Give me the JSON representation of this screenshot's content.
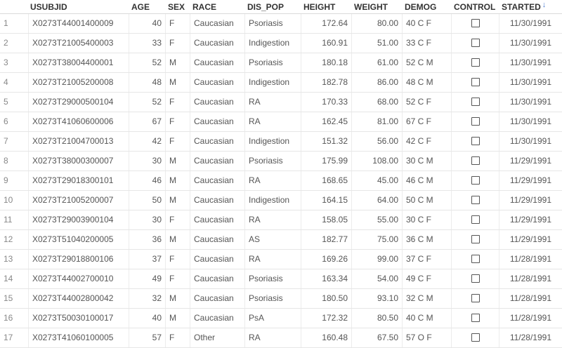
{
  "columns": {
    "index": "",
    "usubjid": "USUBJID",
    "age": "AGE",
    "sex": "SEX",
    "race": "RACE",
    "dis_pop": "DIS_POP",
    "height": "HEIGHT",
    "weight": "WEIGHT",
    "demog": "DEMOG",
    "control": "CONTROL",
    "started": "STARTED"
  },
  "sort_indicator": "↓",
  "rows": [
    {
      "n": "1",
      "usubjid": "X0273T44001400009",
      "age": "40",
      "sex": "F",
      "race": "Caucasian",
      "dis_pop": "Psoriasis",
      "height": "172.64",
      "weight": "80.00",
      "demog": "40 C F",
      "control": false,
      "started": "11/30/1991"
    },
    {
      "n": "2",
      "usubjid": "X0273T21005400003",
      "age": "33",
      "sex": "F",
      "race": "Caucasian",
      "dis_pop": "Indigestion",
      "height": "160.91",
      "weight": "51.00",
      "demog": "33 C F",
      "control": false,
      "started": "11/30/1991"
    },
    {
      "n": "3",
      "usubjid": "X0273T38004400001",
      "age": "52",
      "sex": "M",
      "race": "Caucasian",
      "dis_pop": "Psoriasis",
      "height": "180.18",
      "weight": "61.00",
      "demog": "52 C M",
      "control": false,
      "started": "11/30/1991"
    },
    {
      "n": "4",
      "usubjid": "X0273T21005200008",
      "age": "48",
      "sex": "M",
      "race": "Caucasian",
      "dis_pop": "Indigestion",
      "height": "182.78",
      "weight": "86.00",
      "demog": "48 C M",
      "control": false,
      "started": "11/30/1991"
    },
    {
      "n": "5",
      "usubjid": "X0273T29000500104",
      "age": "52",
      "sex": "F",
      "race": "Caucasian",
      "dis_pop": "RA",
      "height": "170.33",
      "weight": "68.00",
      "demog": "52 C F",
      "control": false,
      "started": "11/30/1991"
    },
    {
      "n": "6",
      "usubjid": "X0273T41060600006",
      "age": "67",
      "sex": "F",
      "race": "Caucasian",
      "dis_pop": "RA",
      "height": "162.45",
      "weight": "81.00",
      "demog": "67 C F",
      "control": false,
      "started": "11/30/1991"
    },
    {
      "n": "7",
      "usubjid": "X0273T21004700013",
      "age": "42",
      "sex": "F",
      "race": "Caucasian",
      "dis_pop": "Indigestion",
      "height": "151.32",
      "weight": "56.00",
      "demog": "42 C F",
      "control": false,
      "started": "11/30/1991"
    },
    {
      "n": "8",
      "usubjid": "X0273T38000300007",
      "age": "30",
      "sex": "M",
      "race": "Caucasian",
      "dis_pop": "Psoriasis",
      "height": "175.99",
      "weight": "108.00",
      "demog": "30 C M",
      "control": false,
      "started": "11/29/1991"
    },
    {
      "n": "9",
      "usubjid": "X0273T29018300101",
      "age": "46",
      "sex": "M",
      "race": "Caucasian",
      "dis_pop": "RA",
      "height": "168.65",
      "weight": "45.00",
      "demog": "46 C M",
      "control": false,
      "started": "11/29/1991"
    },
    {
      "n": "10",
      "usubjid": "X0273T21005200007",
      "age": "50",
      "sex": "M",
      "race": "Caucasian",
      "dis_pop": "Indigestion",
      "height": "164.15",
      "weight": "64.00",
      "demog": "50 C M",
      "control": false,
      "started": "11/29/1991"
    },
    {
      "n": "11",
      "usubjid": "X0273T29003900104",
      "age": "30",
      "sex": "F",
      "race": "Caucasian",
      "dis_pop": "RA",
      "height": "158.05",
      "weight": "55.00",
      "demog": "30 C F",
      "control": false,
      "started": "11/29/1991"
    },
    {
      "n": "12",
      "usubjid": "X0273T51040200005",
      "age": "36",
      "sex": "M",
      "race": "Caucasian",
      "dis_pop": "AS",
      "height": "182.77",
      "weight": "75.00",
      "demog": "36 C M",
      "control": false,
      "started": "11/29/1991"
    },
    {
      "n": "13",
      "usubjid": "X0273T29018800106",
      "age": "37",
      "sex": "F",
      "race": "Caucasian",
      "dis_pop": "RA",
      "height": "169.26",
      "weight": "99.00",
      "demog": "37 C F",
      "control": false,
      "started": "11/28/1991"
    },
    {
      "n": "14",
      "usubjid": "X0273T44002700010",
      "age": "49",
      "sex": "F",
      "race": "Caucasian",
      "dis_pop": "Psoriasis",
      "height": "163.34",
      "weight": "54.00",
      "demog": "49 C F",
      "control": false,
      "started": "11/28/1991"
    },
    {
      "n": "15",
      "usubjid": "X0273T44002800042",
      "age": "32",
      "sex": "M",
      "race": "Caucasian",
      "dis_pop": "Psoriasis",
      "height": "180.50",
      "weight": "93.10",
      "demog": "32 C M",
      "control": false,
      "started": "11/28/1991"
    },
    {
      "n": "16",
      "usubjid": "X0273T50030100017",
      "age": "40",
      "sex": "M",
      "race": "Caucasian",
      "dis_pop": "PsA",
      "height": "172.32",
      "weight": "80.50",
      "demog": "40 C M",
      "control": false,
      "started": "11/28/1991"
    },
    {
      "n": "17",
      "usubjid": "X0273T41060100005",
      "age": "57",
      "sex": "F",
      "race": "Other",
      "dis_pop": "RA",
      "height": "160.48",
      "weight": "67.50",
      "demog": "57 O F",
      "control": false,
      "started": "11/28/1991"
    }
  ]
}
